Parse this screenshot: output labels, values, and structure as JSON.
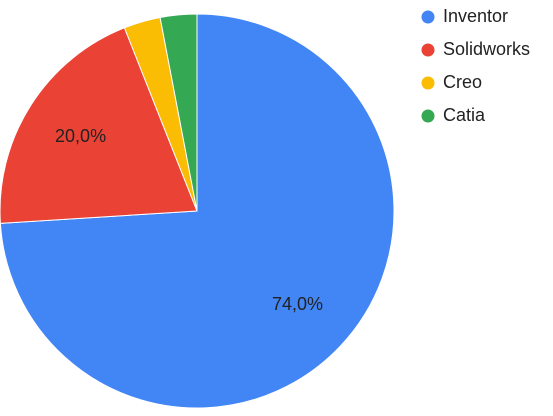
{
  "chart_data": {
    "type": "pie",
    "categories": [
      "Inventor",
      "Solidworks",
      "Creo",
      "Catia"
    ],
    "values": [
      74,
      20,
      3,
      3
    ],
    "value_labels": [
      "74,0%",
      "20,0%",
      null,
      null
    ],
    "colors": [
      "#4285f4",
      "#ea4335",
      "#fbbc04",
      "#34a853"
    ],
    "legend": "right"
  }
}
